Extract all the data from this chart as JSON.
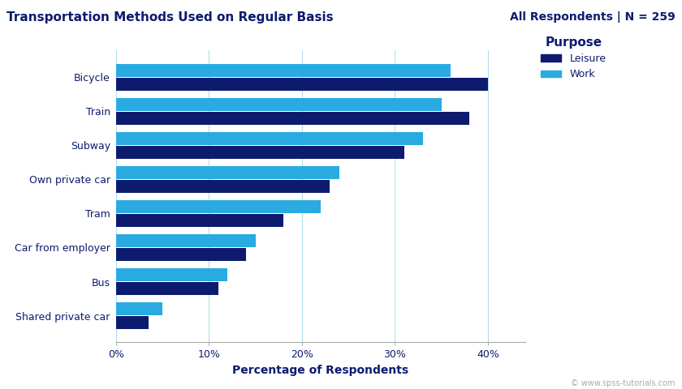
{
  "title": "Transportation Methods Used on Regular Basis",
  "subtitle": "All Respondents | N = 259",
  "xlabel": "Percentage of Respondents",
  "categories": [
    "Bicycle",
    "Train",
    "Subway",
    "Own private car",
    "Tram",
    "Car from employer",
    "Bus",
    "Shared private car"
  ],
  "leisure": [
    40,
    38,
    31,
    23,
    18,
    14,
    11,
    3.5
  ],
  "work": [
    36,
    35,
    33,
    24,
    22,
    15,
    12,
    5
  ],
  "leisure_color": "#0D1B6E",
  "work_color": "#29ABE2",
  "background_color": "#FFFFFF",
  "title_color": "#0D1B6E",
  "subtitle_color": "#0D1B6E",
  "label_color": "#0D1B6E",
  "xtick_labels": [
    "0%",
    "10%",
    "20%",
    "30%",
    "40%"
  ],
  "xtick_values": [
    0,
    10,
    20,
    30,
    40
  ],
  "xlim": [
    0,
    44
  ],
  "watermark": "© www.spss-tutorials.com",
  "legend_title": "Purpose",
  "legend_labels": [
    "Leisure",
    "Work"
  ]
}
